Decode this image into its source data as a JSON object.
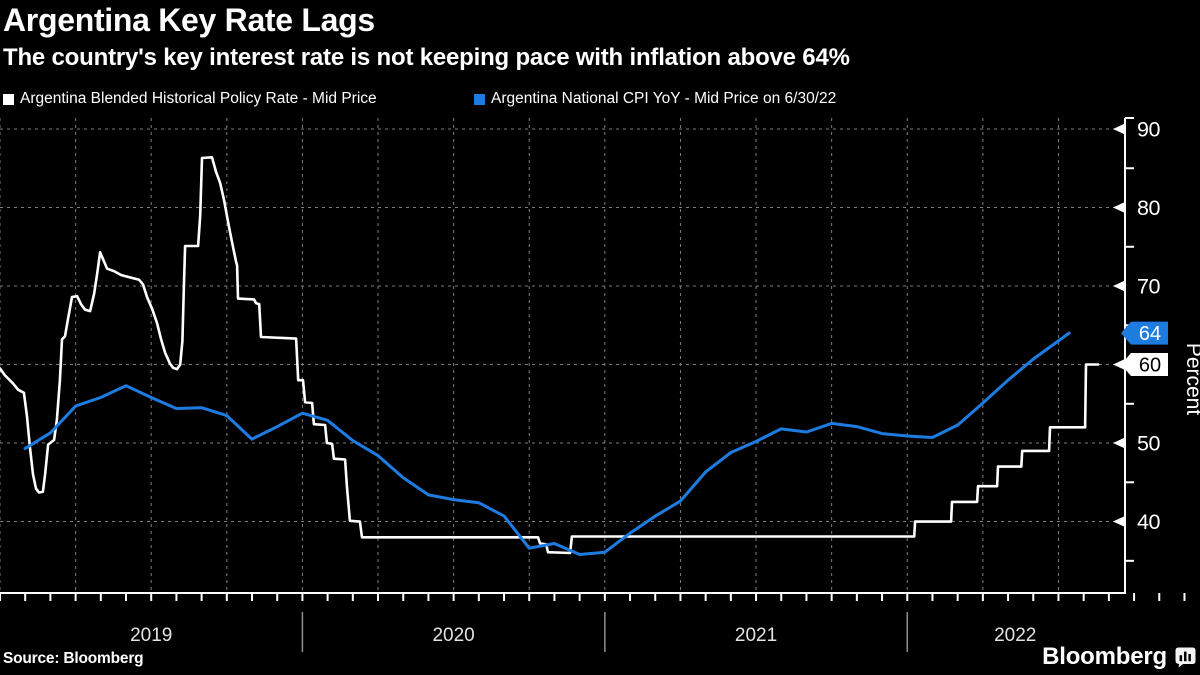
{
  "header": {
    "title": "Argentina Key Rate Lags",
    "subtitle": "The country's key interest rate is not keeping pace with inflation above 64%"
  },
  "legend": [
    {
      "label": "Argentina Blended Historical Policy Rate - Mid Price",
      "color": "#ffffff"
    },
    {
      "label": "Argentina National CPI YoY - Mid Price on 6/30/22",
      "color": "#1e7ce1"
    }
  ],
  "footer": {
    "source": "Source: Bloomberg",
    "brand": "Bloomberg"
  },
  "colors": {
    "background": "#000000",
    "policy_rate_line": "#ffffff",
    "cpi_line": "#1e7ce1",
    "grid": "#7d7d7d",
    "axis": "#ffffff",
    "year_label": "#e3e3e3",
    "badge_cpi_bg": "#1e7ce1",
    "badge_policy_bg": "#ffffff"
  },
  "chart_data": {
    "type": "line",
    "title": "Argentina Key Rate Lags",
    "xlabel": "",
    "ylabel": "Percent",
    "x_axis": {
      "unit": "decimal_year",
      "range": [
        2019.0,
        2022.72
      ],
      "quarter_grid_start": 2019.0,
      "quarter_grid_end": 2022.5,
      "month_tick_start": 2019.0,
      "month_tick_end": 2022.917,
      "year_dividers": [
        2020,
        2021,
        2022
      ],
      "year_labels": [
        {
          "label": "2019",
          "center": 2019.5
        },
        {
          "label": "2020",
          "center": 2020.5
        },
        {
          "label": "2021",
          "center": 2021.5
        },
        {
          "label": "2022",
          "center": 2022.357
        }
      ]
    },
    "y_axis": {
      "label": "Percent",
      "range": [
        30.9,
        91.4
      ],
      "gridlines": [
        40,
        50,
        60,
        70,
        80,
        90
      ],
      "major_ticks": [
        40,
        50,
        60,
        70,
        80,
        90
      ],
      "minor_ticks": [
        35,
        45,
        55,
        65,
        75,
        85
      ],
      "tick_labels": [
        {
          "value": 90,
          "label": "90"
        },
        {
          "value": 80,
          "label": "80"
        },
        {
          "value": 70,
          "label": "70"
        },
        {
          "value": 50,
          "label": "50"
        },
        {
          "value": 40,
          "label": "40"
        }
      ]
    },
    "end_badges": [
      {
        "value": 64,
        "label": "64",
        "bg": "#1e7ce1",
        "text_color": "#ffffff"
      },
      {
        "value": 60,
        "label": "60",
        "bg": "#ffffff",
        "text_color": "#000000"
      }
    ],
    "legend_position": "top-left",
    "grid": "dashed",
    "series": [
      {
        "name": "Argentina Blended Historical Policy Rate - Mid Price",
        "color": "#ffffff",
        "width": 2.6,
        "points": [
          [
            2019.0,
            59.5
          ],
          [
            2019.017,
            58.6
          ],
          [
            2019.043,
            57.6
          ],
          [
            2019.06,
            56.8
          ],
          [
            2019.079,
            56.4
          ],
          [
            2019.089,
            53.5
          ],
          [
            2019.099,
            49.5
          ],
          [
            2019.109,
            46.0
          ],
          [
            2019.119,
            44.2
          ],
          [
            2019.129,
            43.7
          ],
          [
            2019.142,
            43.8
          ],
          [
            2019.149,
            46.0
          ],
          [
            2019.159,
            49.8
          ],
          [
            2019.179,
            50.4
          ],
          [
            2019.188,
            53.0
          ],
          [
            2019.198,
            58.0
          ],
          [
            2019.205,
            63.2
          ],
          [
            2019.215,
            63.6
          ],
          [
            2019.225,
            65.8
          ],
          [
            2019.238,
            68.6
          ],
          [
            2019.255,
            68.7
          ],
          [
            2019.268,
            67.7
          ],
          [
            2019.281,
            67.0
          ],
          [
            2019.298,
            66.8
          ],
          [
            2019.311,
            69.0
          ],
          [
            2019.321,
            71.5
          ],
          [
            2019.331,
            74.3
          ],
          [
            2019.341,
            73.4
          ],
          [
            2019.354,
            72.2
          ],
          [
            2019.377,
            71.9
          ],
          [
            2019.4,
            71.4
          ],
          [
            2019.43,
            71.1
          ],
          [
            2019.46,
            70.8
          ],
          [
            2019.473,
            70.2
          ],
          [
            2019.486,
            68.6
          ],
          [
            2019.503,
            67.1
          ],
          [
            2019.519,
            65.3
          ],
          [
            2019.532,
            63.3
          ],
          [
            2019.546,
            61.5
          ],
          [
            2019.562,
            60.1
          ],
          [
            2019.572,
            59.6
          ],
          [
            2019.585,
            59.4
          ],
          [
            2019.596,
            60.0
          ],
          [
            2019.603,
            63.0
          ],
          [
            2019.608,
            70.0
          ],
          [
            2019.612,
            75.1
          ],
          [
            2019.655,
            75.1
          ],
          [
            2019.662,
            79.0
          ],
          [
            2019.668,
            86.3
          ],
          [
            2019.701,
            86.4
          ],
          [
            2019.714,
            84.6
          ],
          [
            2019.728,
            83.1
          ],
          [
            2019.741,
            80.9
          ],
          [
            2019.754,
            78.2
          ],
          [
            2019.767,
            75.6
          ],
          [
            2019.78,
            73.2
          ],
          [
            2019.784,
            72.6
          ],
          [
            2019.787,
            68.4
          ],
          [
            2019.84,
            68.3
          ],
          [
            2019.847,
            67.8
          ],
          [
            2019.857,
            67.7
          ],
          [
            2019.863,
            63.5
          ],
          [
            2019.979,
            63.3
          ],
          [
            2019.986,
            58.0
          ],
          [
            2020.002,
            58.0
          ],
          [
            2020.009,
            55.2
          ],
          [
            2020.032,
            55.1
          ],
          [
            2020.038,
            52.4
          ],
          [
            2020.075,
            52.3
          ],
          [
            2020.081,
            50.0
          ],
          [
            2020.098,
            49.9
          ],
          [
            2020.104,
            48.0
          ],
          [
            2020.141,
            47.9
          ],
          [
            2020.147,
            44.5
          ],
          [
            2020.157,
            40.1
          ],
          [
            2020.19,
            40.0
          ],
          [
            2020.197,
            38.0
          ],
          [
            2020.779,
            38.0
          ],
          [
            2020.786,
            37.2
          ],
          [
            2020.806,
            37.1
          ],
          [
            2020.812,
            36.1
          ],
          [
            2020.885,
            36.0
          ],
          [
            2020.891,
            38.1
          ],
          [
            2022.023,
            38.1
          ],
          [
            2022.026,
            40.0
          ],
          [
            2022.145,
            40.0
          ],
          [
            2022.148,
            42.5
          ],
          [
            2022.231,
            42.5
          ],
          [
            2022.234,
            44.5
          ],
          [
            2022.297,
            44.5
          ],
          [
            2022.3,
            47.0
          ],
          [
            2022.377,
            47.0
          ],
          [
            2022.38,
            49.0
          ],
          [
            2022.469,
            49.0
          ],
          [
            2022.472,
            52.0
          ],
          [
            2022.588,
            52.0
          ],
          [
            2022.591,
            60.0
          ],
          [
            2022.631,
            60.0
          ]
        ]
      },
      {
        "name": "Argentina National CPI YoY - Mid Price on 6/30/22",
        "color": "#1e7ce1",
        "width": 3,
        "points": [
          [
            2019.083,
            49.3
          ],
          [
            2019.167,
            51.3
          ],
          [
            2019.25,
            54.7
          ],
          [
            2019.333,
            55.8
          ],
          [
            2019.417,
            57.3
          ],
          [
            2019.5,
            55.8
          ],
          [
            2019.583,
            54.4
          ],
          [
            2019.667,
            54.5
          ],
          [
            2019.75,
            53.5
          ],
          [
            2019.833,
            50.5
          ],
          [
            2019.917,
            52.1
          ],
          [
            2020.0,
            53.8
          ],
          [
            2020.083,
            52.9
          ],
          [
            2020.167,
            50.3
          ],
          [
            2020.25,
            48.4
          ],
          [
            2020.333,
            45.6
          ],
          [
            2020.417,
            43.4
          ],
          [
            2020.5,
            42.8
          ],
          [
            2020.583,
            42.4
          ],
          [
            2020.667,
            40.7
          ],
          [
            2020.75,
            36.6
          ],
          [
            2020.833,
            37.2
          ],
          [
            2020.917,
            35.8
          ],
          [
            2021.0,
            36.1
          ],
          [
            2021.083,
            38.5
          ],
          [
            2021.167,
            40.7
          ],
          [
            2021.25,
            42.6
          ],
          [
            2021.333,
            46.3
          ],
          [
            2021.417,
            48.8
          ],
          [
            2021.5,
            50.2
          ],
          [
            2021.583,
            51.8
          ],
          [
            2021.667,
            51.4
          ],
          [
            2021.75,
            52.5
          ],
          [
            2021.833,
            52.1
          ],
          [
            2021.917,
            51.2
          ],
          [
            2022.0,
            50.9
          ],
          [
            2022.083,
            50.7
          ],
          [
            2022.167,
            52.3
          ],
          [
            2022.25,
            55.1
          ],
          [
            2022.333,
            58.0
          ],
          [
            2022.417,
            60.7
          ],
          [
            2022.535,
            64.0
          ]
        ]
      }
    ]
  }
}
